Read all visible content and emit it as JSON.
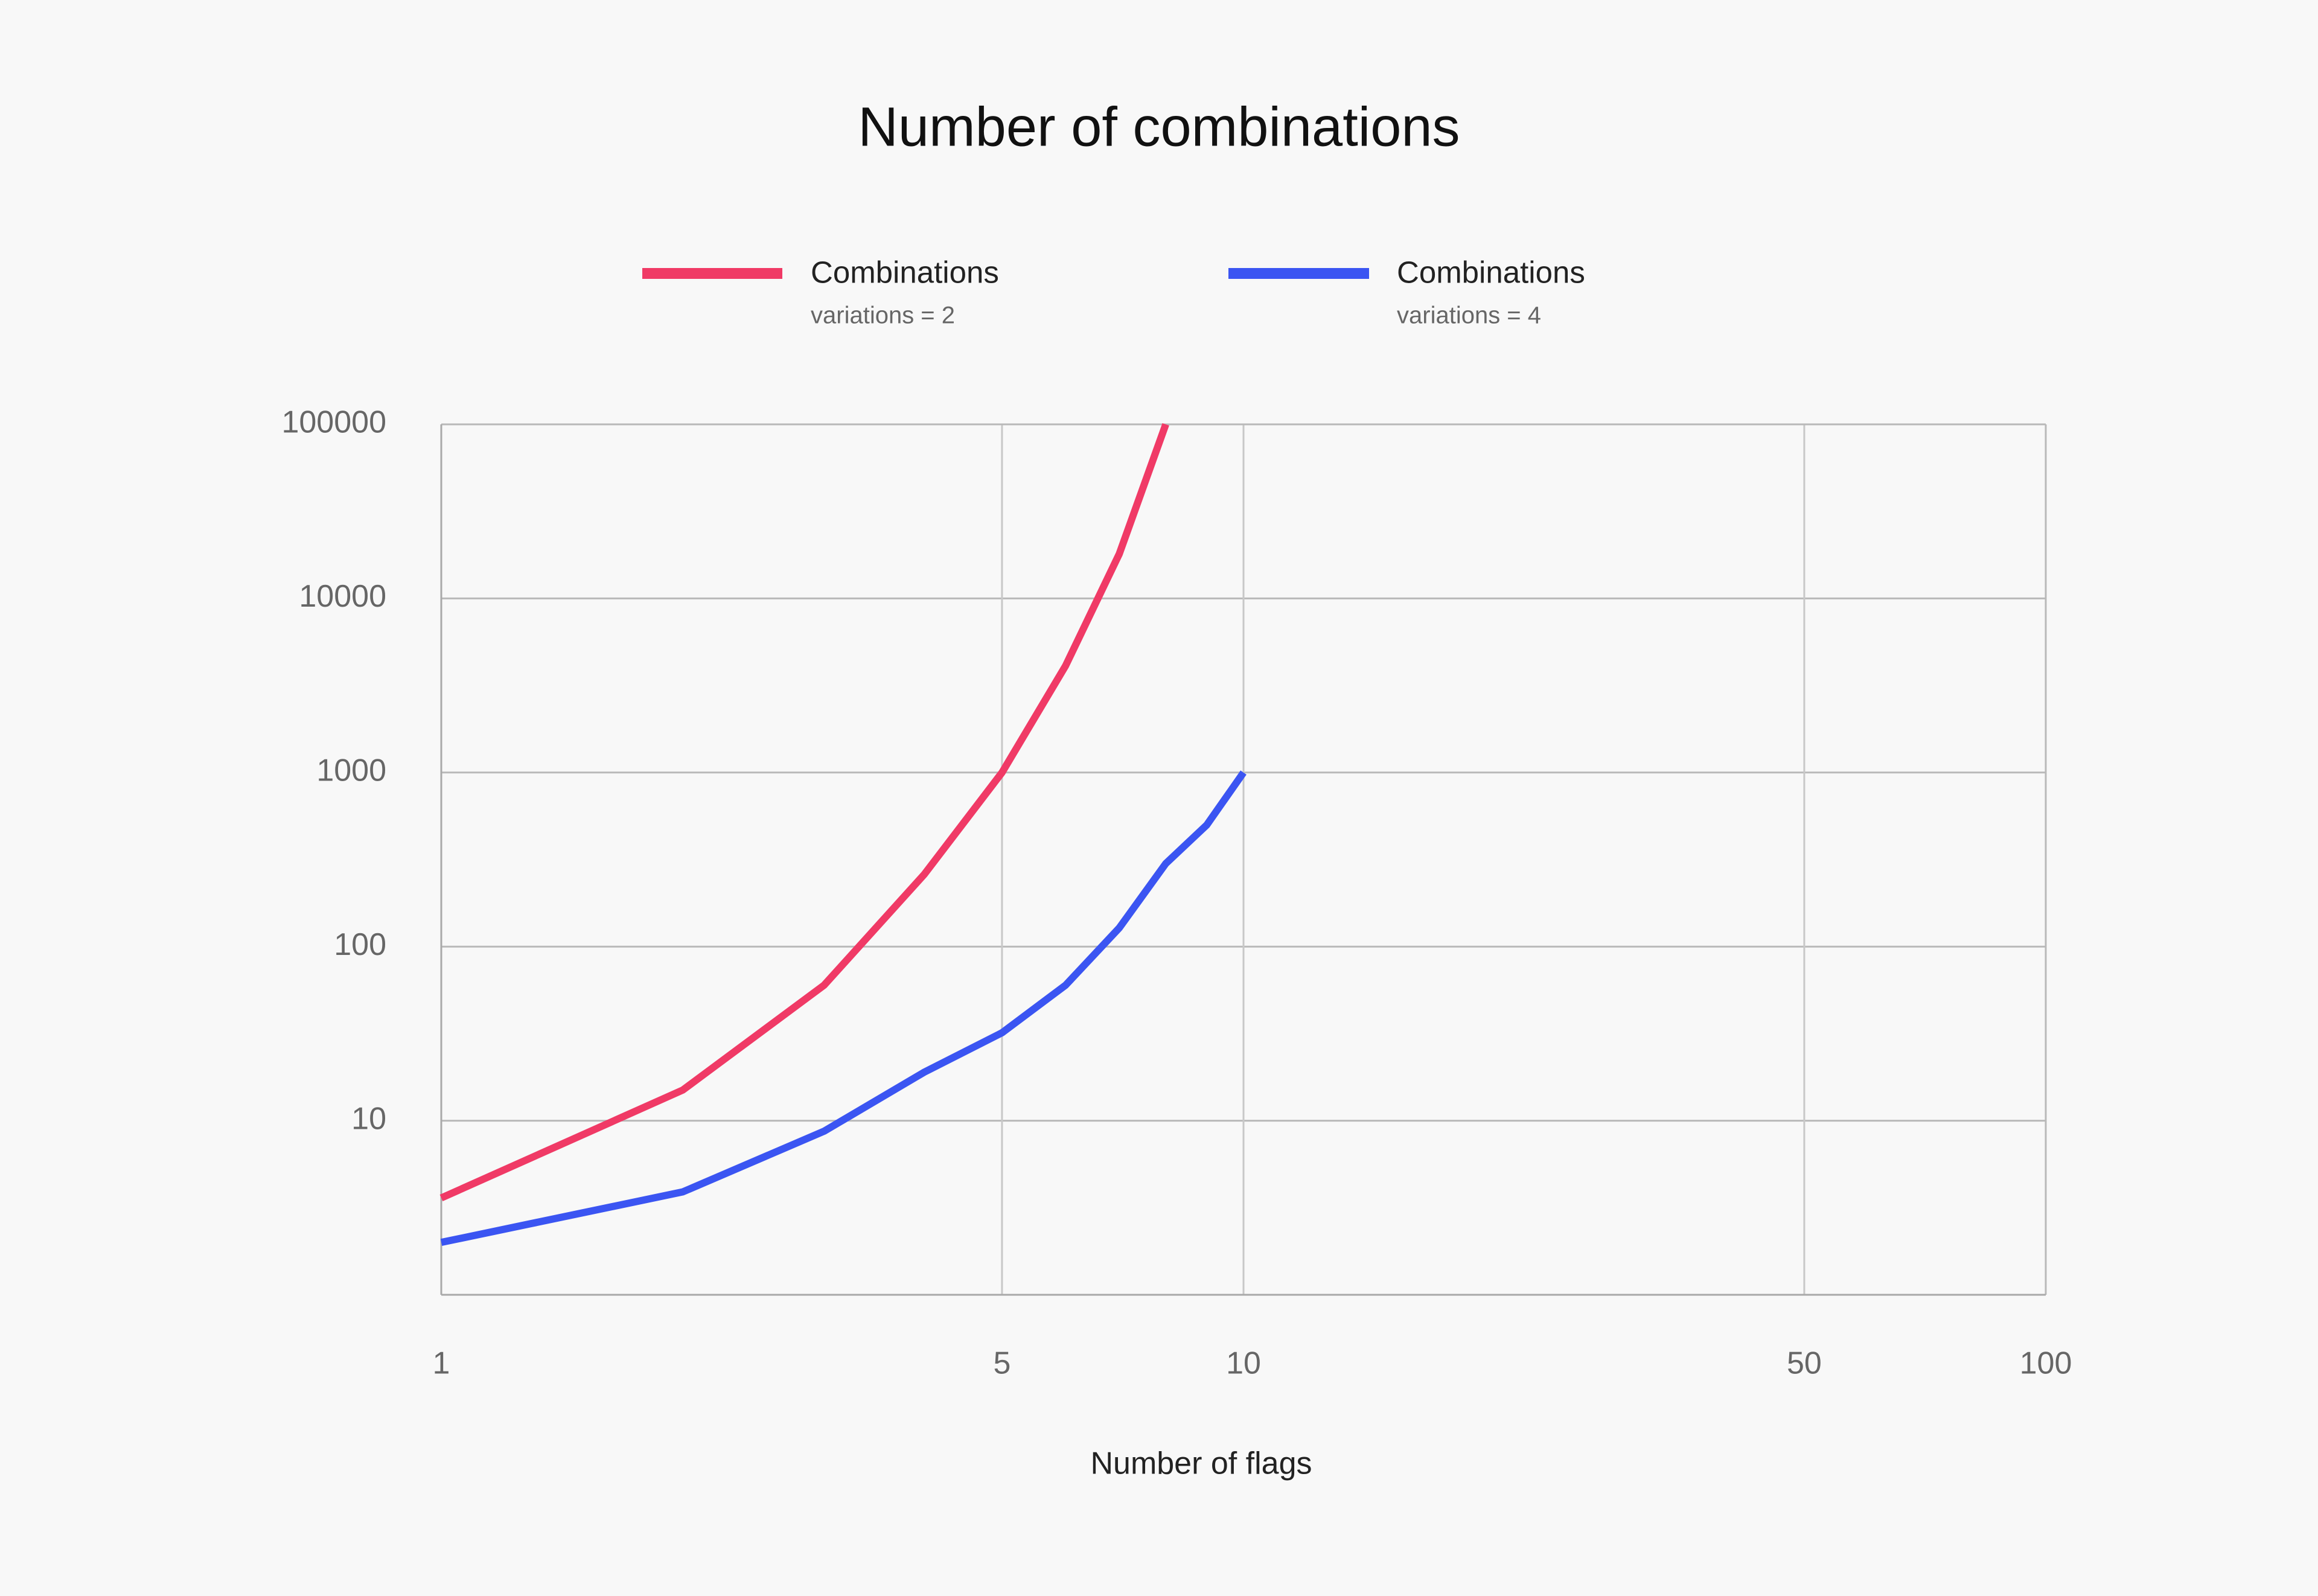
{
  "chart_data": {
    "type": "line",
    "title": "Number of combinations",
    "subtitle": "",
    "xlabel": "Number of flags",
    "ylabel": "",
    "x_scale": "log",
    "y_scale": "log",
    "xlim": [
      1,
      100
    ],
    "ylim": [
      1,
      100000
    ],
    "x_ticks": [
      1,
      5,
      10,
      50,
      100
    ],
    "x_tick_labels": [
      "1",
      "5",
      "10",
      "50",
      "100"
    ],
    "y_ticks": [
      10,
      100,
      1000,
      10000,
      100000
    ],
    "y_tick_labels": [
      "10",
      "100",
      "1000",
      "10000",
      "100000"
    ],
    "grid": true,
    "legend_position": "top",
    "series": [
      {
        "name": "Combinations",
        "subtitle": "variations = 2",
        "color": "#f03a66",
        "x": [
          1,
          2,
          3,
          4,
          5,
          6,
          7,
          8
        ],
        "y": [
          3.6,
          15,
          60,
          260,
          1000,
          4100,
          18000,
          100000
        ]
      },
      {
        "name": "Combinations",
        "subtitle": "variations = 4",
        "color": "#3b55f2",
        "x": [
          1,
          2,
          3,
          4,
          5,
          6,
          7,
          8,
          9,
          10
        ],
        "y": [
          2,
          3.9,
          8.7,
          19,
          32,
          60,
          128,
          300,
          500,
          1000
        ]
      }
    ]
  }
}
